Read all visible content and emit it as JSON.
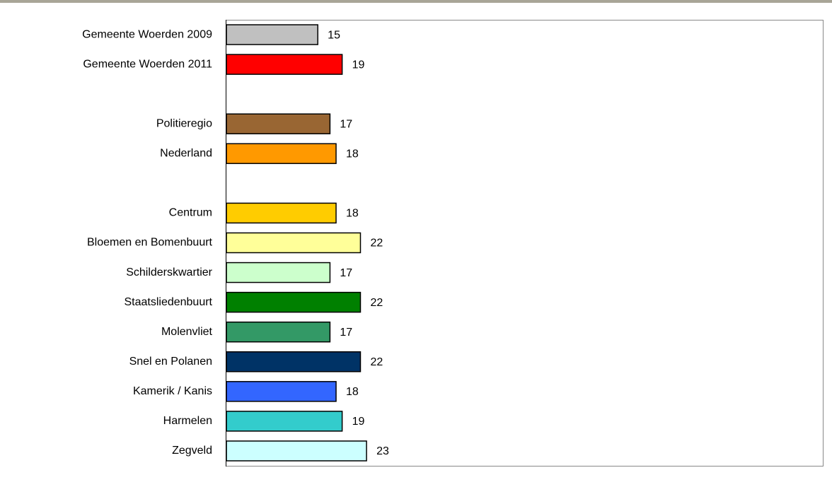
{
  "chart_data": {
    "type": "hbar",
    "categories": [
      "Gemeente Woerden 2009",
      "Gemeente Woerden 2011",
      null,
      "Politieregio",
      "Nederland",
      null,
      "Centrum",
      "Bloemen en Bomenbuurt",
      "Schilderskwartier",
      "Staatsliedenbuurt",
      "Molenvliet",
      "Snel en Polanen",
      "Kamerik / Kanis",
      "Harmelen",
      "Zegveld"
    ],
    "values": [
      15,
      19,
      null,
      17,
      18,
      null,
      18,
      22,
      17,
      22,
      17,
      22,
      18,
      19,
      23
    ],
    "colors": [
      "#c0c0c0",
      "#ff0000",
      null,
      "#996633",
      "#ff9900",
      null,
      "#ffcc00",
      "#ffff99",
      "#ccffcc",
      "#008000",
      "#339966",
      "#003366",
      "#3366ff",
      "#33cccc",
      "#ccffff"
    ],
    "xlim": [
      0,
      98
    ]
  }
}
